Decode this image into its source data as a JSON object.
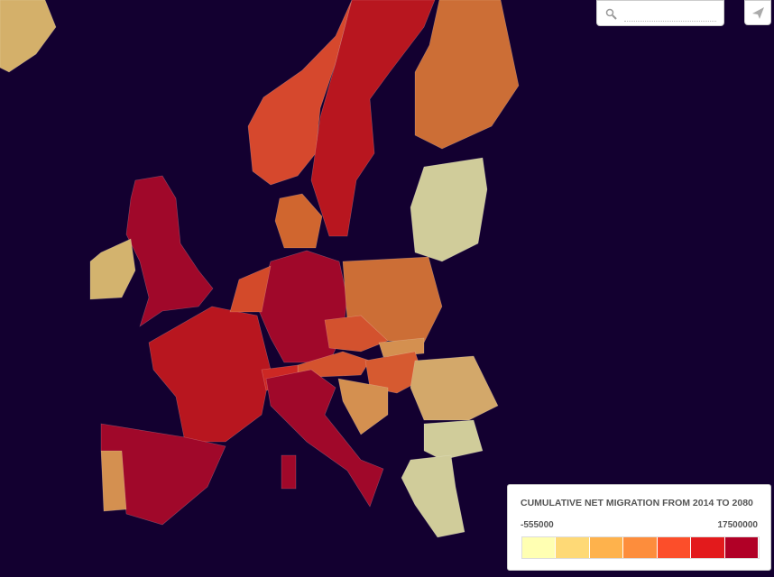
{
  "legend": {
    "title": "CUMULATIVE NET MIGRATION FROM 2014 TO 2080",
    "min": -555000,
    "max": 17500000,
    "colors": [
      "#ffffb2",
      "#fed976",
      "#feb24c",
      "#fd8d3c",
      "#fc4e2a",
      "#e31a1c",
      "#b10026"
    ]
  }
}
